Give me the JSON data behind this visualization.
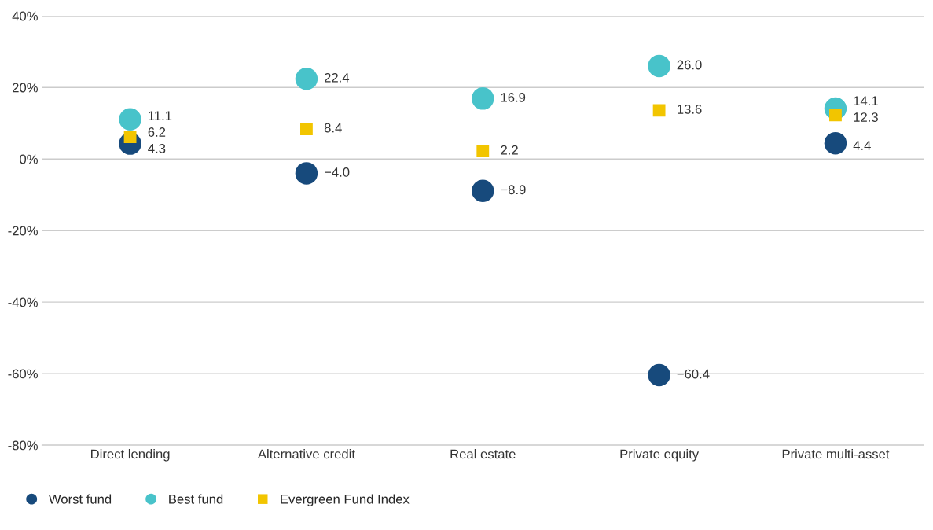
{
  "chart_data": {
    "type": "scatter",
    "categories": [
      "Direct lending",
      "Alternative credit",
      "Real estate",
      "Private equity",
      "Private multi-asset"
    ],
    "series": [
      {
        "name": "Worst fund",
        "color": "#174a7c",
        "marker": "circle",
        "values": [
          4.3,
          -4.0,
          -8.9,
          -60.4,
          4.4
        ],
        "value_labels": [
          "4.3",
          "−4.0",
          "−8.9",
          "−60.4",
          "4.4"
        ]
      },
      {
        "name": "Best fund",
        "color": "#48c3ca",
        "marker": "circle",
        "values": [
          11.1,
          22.4,
          16.9,
          26.0,
          14.1
        ],
        "value_labels": [
          "11.1",
          "22.4",
          "16.9",
          "26.0",
          "14.1"
        ]
      },
      {
        "name": "Evergreen Fund Index",
        "color": "#f2c500",
        "marker": "square",
        "values": [
          6.2,
          8.4,
          2.2,
          13.6,
          12.3
        ],
        "value_labels": [
          "6.2",
          "8.4",
          "2.2",
          "13.6",
          "12.3"
        ]
      }
    ],
    "ylim": [
      -80,
      40
    ],
    "yticks": [
      {
        "value": -80,
        "label": "-80%"
      },
      {
        "value": -60,
        "label": "-60%"
      },
      {
        "value": -40,
        "label": "-40%"
      },
      {
        "value": -20,
        "label": "-20%"
      },
      {
        "value": 0,
        "label": "0%"
      },
      {
        "value": 20,
        "label": "20%"
      },
      {
        "value": 40,
        "label": "40%"
      }
    ],
    "grid": "y",
    "legend": "bottom left"
  }
}
